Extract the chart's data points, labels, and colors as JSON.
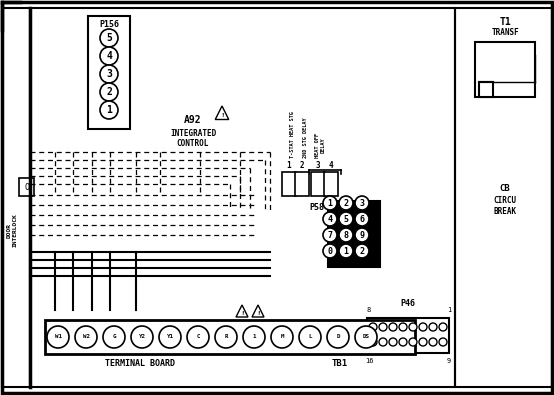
{
  "bg": "#ffffff",
  "p156_label": "P156",
  "p156_pins": [
    "5",
    "4",
    "3",
    "2",
    "1"
  ],
  "a92_lines": [
    "A92",
    "INTEGRATED",
    "CONTROL"
  ],
  "relay_v_labels": [
    "T-STAT HEAT STG",
    "2ND STG DELAY",
    "HEAT OFF\nDELAY"
  ],
  "relay_nums": [
    "1",
    "2",
    "3",
    "4"
  ],
  "p58_label": "P58",
  "p58_grid": [
    [
      "3",
      "2",
      "1"
    ],
    [
      "6",
      "5",
      "4"
    ],
    [
      "9",
      "8",
      "7"
    ],
    [
      "2",
      "1",
      "0"
    ]
  ],
  "p46_label": "P46",
  "p46_corners": [
    "8",
    "1",
    "16",
    "9"
  ],
  "t1_lines": [
    "T1",
    "TRANSF"
  ],
  "cb_lines": [
    "CB",
    "CIRCU",
    "BREAK"
  ],
  "terminal_labels": [
    "W1",
    "W2",
    "G",
    "Y2",
    "Y1",
    "C",
    "R",
    "1",
    "M",
    "L",
    "D",
    "DS"
  ],
  "terminal_board_label": "TERMINAL BOARD",
  "tb1_label": "TB1",
  "door_label": "DOOR\nINTERLOCK"
}
